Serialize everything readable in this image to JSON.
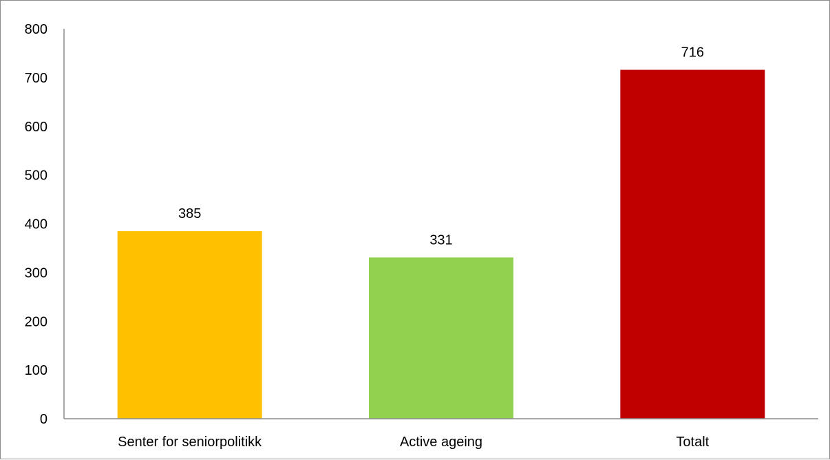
{
  "chart_data": {
    "type": "bar",
    "title": "",
    "xlabel": "",
    "ylabel": "",
    "categories": [
      "Senter for seniorpolitikk",
      "Active ageing",
      "Totalt"
    ],
    "values": [
      385,
      331,
      716
    ],
    "data_labels": [
      "385",
      "331",
      "716"
    ],
    "colors": [
      "#FFC000",
      "#92D050",
      "#C00000"
    ],
    "ylim": [
      0,
      800
    ],
    "y_ticks": [
      0,
      100,
      200,
      300,
      400,
      500,
      600,
      700,
      800
    ],
    "y_tick_labels": [
      "0",
      "100",
      "200",
      "300",
      "400",
      "500",
      "600",
      "700",
      "800"
    ],
    "grid": false,
    "legend": "none"
  }
}
